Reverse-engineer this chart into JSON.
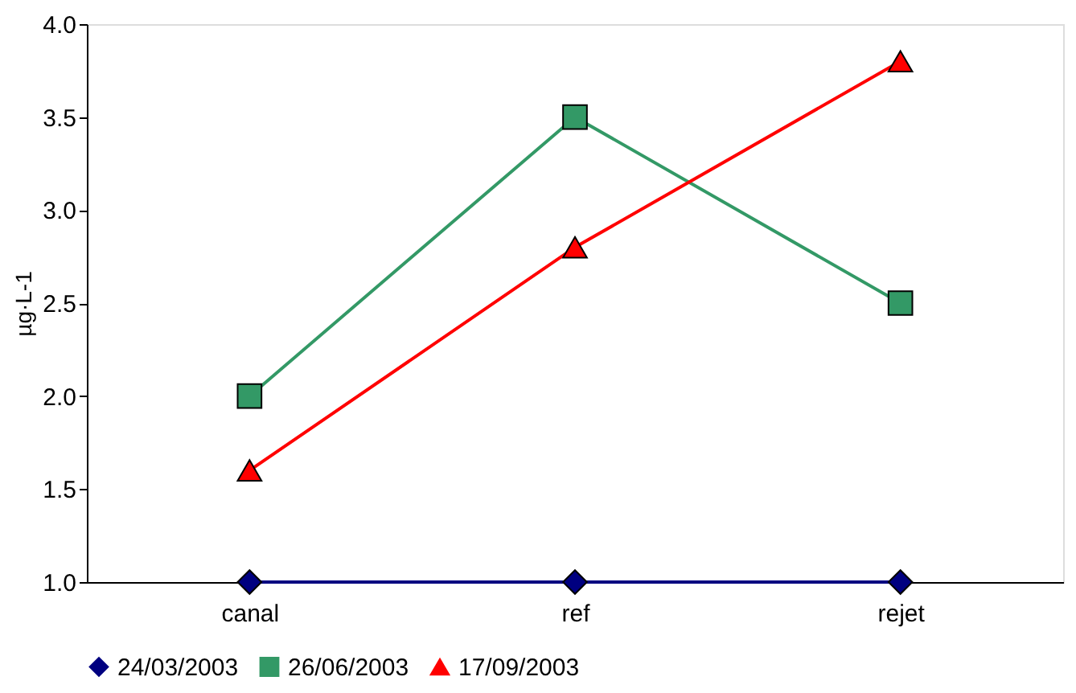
{
  "chart_data": {
    "type": "line",
    "ylabel": "µg·L-1",
    "categories": [
      "canal",
      "ref",
      "rejet"
    ],
    "series": [
      {
        "name": "24/03/2003",
        "color": "#000080",
        "marker": "diamond",
        "values": [
          1.0,
          1.0,
          1.0
        ]
      },
      {
        "name": "26/06/2003",
        "color": "#339966",
        "marker": "square",
        "values": [
          2.0,
          3.5,
          2.5
        ]
      },
      {
        "name": "17/09/2003",
        "color": "#ff0000",
        "marker": "triangle",
        "values": [
          1.6,
          2.8,
          3.8
        ]
      }
    ],
    "ylim": [
      1.0,
      4.0
    ],
    "yticks": [
      {
        "value": 1.0,
        "label": "1.0"
      },
      {
        "value": 1.5,
        "label": "1.5"
      },
      {
        "value": 2.0,
        "label": "2.0"
      },
      {
        "value": 2.5,
        "label": "2.5"
      },
      {
        "value": 3.0,
        "label": "3.0"
      },
      {
        "value": 3.5,
        "label": "3.5"
      },
      {
        "value": 4.0,
        "label": "4.0"
      }
    ],
    "grid": false,
    "legend": "bottom",
    "line_style": "solid"
  }
}
